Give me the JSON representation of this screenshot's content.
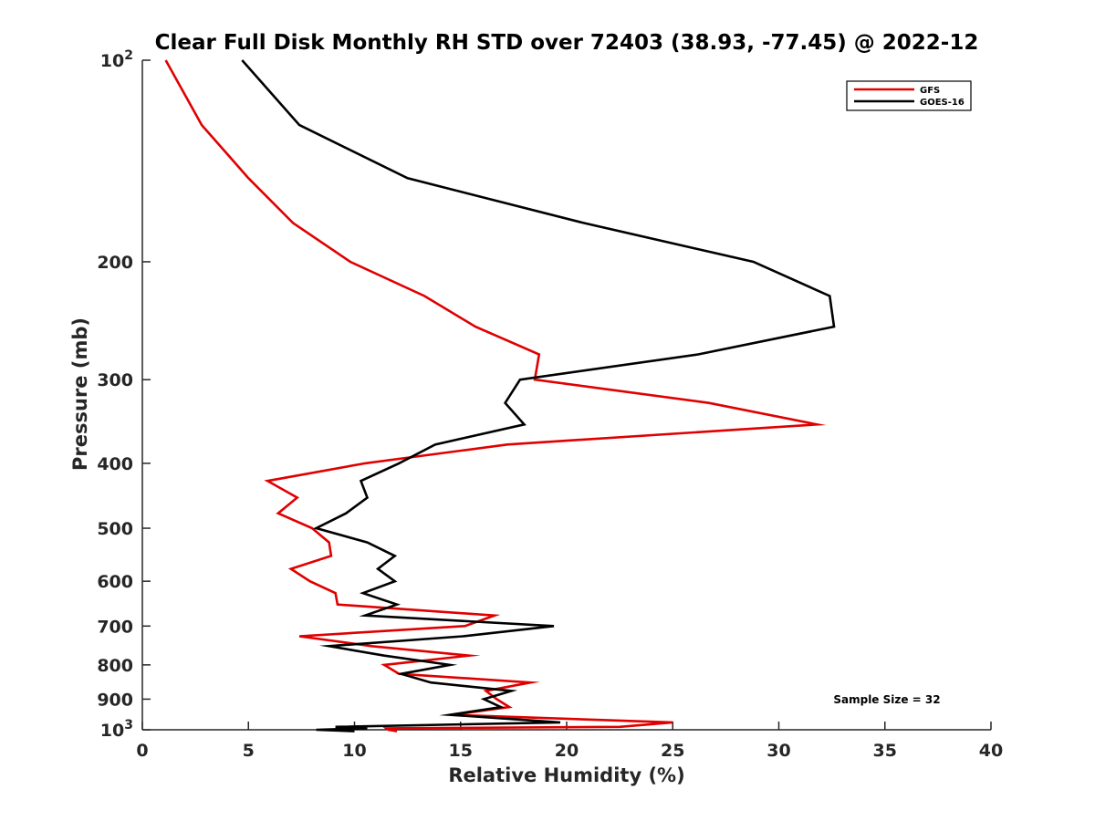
{
  "chart_data": {
    "type": "line",
    "title": "Clear Full Disk Monthly RH STD over 72403 (38.93, -77.45) @ 2022-12",
    "xlabel": "Relative Humidity (%)",
    "ylabel": "Pressure (mb)",
    "xlim": [
      0,
      40
    ],
    "ylim": [
      100,
      1000
    ],
    "y_scale": "log",
    "y_reversed": true,
    "grid": false,
    "legend_position": "top-right",
    "x_ticks": [
      0,
      5,
      10,
      15,
      20,
      25,
      30,
      35,
      40
    ],
    "y_ticks": [
      {
        "value": 100,
        "base": "10",
        "exp": "2"
      },
      {
        "value": 200,
        "label": "200"
      },
      {
        "value": 300,
        "label": "300"
      },
      {
        "value": 400,
        "label": "400"
      },
      {
        "value": 500,
        "label": "500"
      },
      {
        "value": 600,
        "label": "600"
      },
      {
        "value": 700,
        "label": "700"
      },
      {
        "value": 800,
        "label": "800"
      },
      {
        "value": 900,
        "label": "900"
      },
      {
        "value": 1000,
        "base": "10",
        "exp": "3"
      }
    ],
    "series": [
      {
        "name": "GFS",
        "color": "#e00000",
        "points": [
          [
            1.1,
            100
          ],
          [
            2.8,
            125
          ],
          [
            5.0,
            150
          ],
          [
            7.1,
            175
          ],
          [
            9.8,
            200
          ],
          [
            13.3,
            225
          ],
          [
            15.7,
            250
          ],
          [
            18.7,
            275
          ],
          [
            18.5,
            300
          ],
          [
            26.7,
            325
          ],
          [
            31.8,
            350
          ],
          [
            17.2,
            375
          ],
          [
            10.5,
            400
          ],
          [
            5.9,
            425
          ],
          [
            7.3,
            450
          ],
          [
            6.4,
            475
          ],
          [
            8.0,
            500
          ],
          [
            8.8,
            525
          ],
          [
            8.9,
            550
          ],
          [
            7.0,
            575
          ],
          [
            7.9,
            600
          ],
          [
            9.1,
            625
          ],
          [
            9.2,
            650
          ],
          [
            16.6,
            675
          ],
          [
            15.2,
            700
          ],
          [
            7.4,
            725
          ],
          [
            10.8,
            750
          ],
          [
            15.4,
            775
          ],
          [
            11.4,
            800
          ],
          [
            12.1,
            825
          ],
          [
            18.3,
            850
          ],
          [
            16.2,
            875
          ],
          [
            16.7,
            900
          ],
          [
            17.3,
            925
          ],
          [
            14.6,
            950
          ],
          [
            25.0,
            975
          ],
          [
            22.5,
            990
          ],
          [
            11.5,
            995
          ],
          [
            11.6,
            1000
          ],
          [
            12.0,
            1005
          ]
        ]
      },
      {
        "name": "GOES-16",
        "color": "#000000",
        "points": [
          [
            4.7,
            100
          ],
          [
            7.4,
            125
          ],
          [
            12.5,
            150
          ],
          [
            20.8,
            175
          ],
          [
            28.8,
            200
          ],
          [
            32.4,
            225
          ],
          [
            32.6,
            250
          ],
          [
            26.2,
            275
          ],
          [
            17.8,
            300
          ],
          [
            17.1,
            325
          ],
          [
            18.0,
            350
          ],
          [
            13.8,
            375
          ],
          [
            12.1,
            400
          ],
          [
            10.3,
            425
          ],
          [
            10.6,
            450
          ],
          [
            9.6,
            475
          ],
          [
            8.2,
            500
          ],
          [
            10.6,
            525
          ],
          [
            11.9,
            550
          ],
          [
            11.1,
            575
          ],
          [
            11.9,
            600
          ],
          [
            10.4,
            625
          ],
          [
            12.0,
            650
          ],
          [
            10.5,
            675
          ],
          [
            19.4,
            700
          ],
          [
            15.1,
            725
          ],
          [
            8.8,
            750
          ],
          [
            11.4,
            775
          ],
          [
            14.5,
            800
          ],
          [
            12.2,
            825
          ],
          [
            13.6,
            850
          ],
          [
            17.4,
            875
          ],
          [
            16.1,
            900
          ],
          [
            16.9,
            925
          ],
          [
            14.5,
            950
          ],
          [
            19.7,
            975
          ],
          [
            9.1,
            990
          ],
          [
            10.6,
            995
          ],
          [
            8.2,
            1000
          ],
          [
            10.0,
            1005
          ]
        ]
      }
    ],
    "annotation": "Sample Size = 32"
  }
}
